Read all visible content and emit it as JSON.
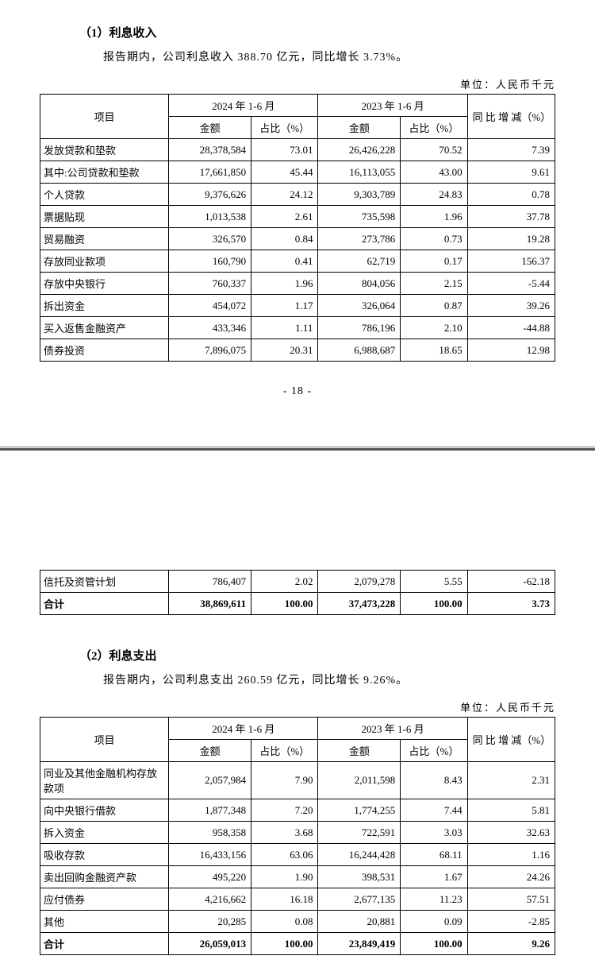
{
  "section1": {
    "title": "（1）利息收入",
    "intro": "报告期内，公司利息收入 388.70 亿元，同比增长 3.73%。",
    "unit": "单位：人民币千元",
    "page_number": "- 18 -",
    "header": {
      "item": "项目",
      "period1": "2024 年 1-6 月",
      "period2": "2023 年 1-6 月",
      "amount": "金额",
      "pct": "占比（%）",
      "delta": "同 比 增 减（%）"
    },
    "rows": [
      {
        "name": "发放贷款和垫款",
        "a1": "28,378,584",
        "p1": "73.01",
        "a2": "26,426,228",
        "p2": "70.52",
        "d": "7.39"
      },
      {
        "name": "其中:公司贷款和垫款",
        "a1": "17,661,850",
        "p1": "45.44",
        "a2": "16,113,055",
        "p2": "43.00",
        "d": "9.61"
      },
      {
        "name": "个人贷款",
        "a1": "9,376,626",
        "p1": "24.12",
        "a2": "9,303,789",
        "p2": "24.83",
        "d": "0.78"
      },
      {
        "name": "票据贴现",
        "a1": "1,013,538",
        "p1": "2.61",
        "a2": "735,598",
        "p2": "1.96",
        "d": "37.78"
      },
      {
        "name": "贸易融资",
        "a1": "326,570",
        "p1": "0.84",
        "a2": "273,786",
        "p2": "0.73",
        "d": "19.28"
      },
      {
        "name": "存放同业款项",
        "a1": "160,790",
        "p1": "0.41",
        "a2": "62,719",
        "p2": "0.17",
        "d": "156.37"
      },
      {
        "name": "存放中央银行",
        "a1": "760,337",
        "p1": "1.96",
        "a2": "804,056",
        "p2": "2.15",
        "d": "-5.44"
      },
      {
        "name": "拆出资金",
        "a1": "454,072",
        "p1": "1.17",
        "a2": "326,064",
        "p2": "0.87",
        "d": "39.26"
      },
      {
        "name": "买入返售金融资产",
        "a1": "433,346",
        "p1": "1.11",
        "a2": "786,196",
        "p2": "2.10",
        "d": "-44.88"
      },
      {
        "name": "债券投资",
        "a1": "7,896,075",
        "p1": "20.31",
        "a2": "6,988,687",
        "p2": "18.65",
        "d": "12.98"
      }
    ],
    "cont_rows": [
      {
        "name": "信托及资管计划",
        "a1": "786,407",
        "p1": "2.02",
        "a2": "2,079,278",
        "p2": "5.55",
        "d": "-62.18"
      }
    ],
    "total": {
      "name": "合计",
      "a1": "38,869,611",
      "p1": "100.00",
      "a2": "37,473,228",
      "p2": "100.00",
      "d": "3.73"
    }
  },
  "section2": {
    "title": "（2）利息支出",
    "intro": "报告期内，公司利息支出 260.59 亿元，同比增长 9.26%。",
    "unit": "单位：人民币千元",
    "header": {
      "item": "项目",
      "period1": "2024 年 1-6 月",
      "period2": "2023 年 1-6 月",
      "amount": "金额",
      "pct": "占比（%）",
      "delta": "同 比 增 减（%）"
    },
    "rows": [
      {
        "name": "同业及其他金融机构存放款项",
        "a1": "2,057,984",
        "p1": "7.90",
        "a2": "2,011,598",
        "p2": "8.43",
        "d": "2.31"
      },
      {
        "name": "向中央银行借款",
        "a1": "1,877,348",
        "p1": "7.20",
        "a2": "1,774,255",
        "p2": "7.44",
        "d": "5.81"
      },
      {
        "name": "拆入资金",
        "a1": "958,358",
        "p1": "3.68",
        "a2": "722,591",
        "p2": "3.03",
        "d": "32.63"
      },
      {
        "name": "吸收存款",
        "a1": "16,433,156",
        "p1": "63.06",
        "a2": "16,244,428",
        "p2": "68.11",
        "d": "1.16"
      },
      {
        "name": "卖出回购金融资产款",
        "a1": "495,220",
        "p1": "1.90",
        "a2": "398,531",
        "p2": "1.67",
        "d": "24.26"
      },
      {
        "name": "应付债券",
        "a1": "4,216,662",
        "p1": "16.18",
        "a2": "2,677,135",
        "p2": "11.23",
        "d": "57.51"
      },
      {
        "name": "其他",
        "a1": "20,285",
        "p1": "0.08",
        "a2": "20,881",
        "p2": "0.09",
        "d": "-2.85"
      }
    ],
    "total": {
      "name": "合计",
      "a1": "26,059,013",
      "p1": "100.00",
      "a2": "23,849,419",
      "p2": "100.00",
      "d": "9.26"
    }
  },
  "columns": {
    "name_width": "25%",
    "amt_width": "16%",
    "pct_width": "13%",
    "delta_width": "17%"
  }
}
